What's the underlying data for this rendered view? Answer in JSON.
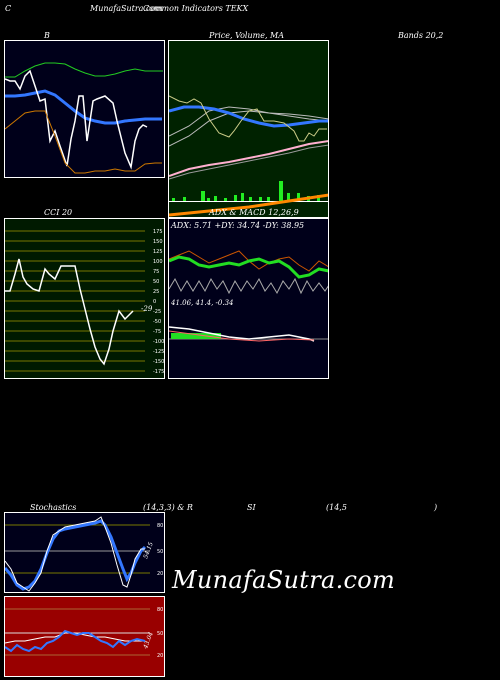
{
  "header": {
    "corner_letter": "C",
    "title": "MunafaSutra.com",
    "subtitle": "Common Indicators TEKX"
  },
  "bands_panel": {
    "label": "B",
    "right_label": "Bands 20,2"
  },
  "price_panel": {
    "label": "Price,  Volume,  MA"
  },
  "cci_panel": {
    "label": "CCI 20",
    "value_label": "-29",
    "ticks": [
      "175",
      "150",
      "125",
      "100",
      "75",
      "50",
      "25",
      "0",
      "-25",
      "-50",
      "-75",
      "-100",
      "-125",
      "-150",
      "-175"
    ]
  },
  "adx_panel": {
    "title": "ADX  & MACD 12,26,9",
    "adx_text": "ADX: 5.71  +DY: 34.74  -DY: 38.95",
    "macd_text": "41.06,  41.4,  -0.34"
  },
  "stoch_panel": {
    "label_left": "Stochastics",
    "label_mid": "(14,3,3) & R",
    "label_rsi": "SI",
    "label_rsi_params": "(14,5",
    "label_close": ")",
    "ticks": [
      "80",
      "50",
      "20"
    ],
    "value_label": "54.15"
  },
  "rsi_panel": {
    "ticks": [
      "80",
      "50",
      "20"
    ],
    "value_label": "43.04"
  },
  "watermark": "MunafaSutra.com",
  "colors": {
    "bands_bg": "#00001a",
    "price_bg": "#002200",
    "cci_bg": "#001a00",
    "adx_bg": "#00001a",
    "stoch_bg": "#00001a",
    "rsi_bg": "#990000",
    "blue_line": "#3377ff",
    "green_line": "#22cc22",
    "orange_line": "#cc7700"
  }
}
